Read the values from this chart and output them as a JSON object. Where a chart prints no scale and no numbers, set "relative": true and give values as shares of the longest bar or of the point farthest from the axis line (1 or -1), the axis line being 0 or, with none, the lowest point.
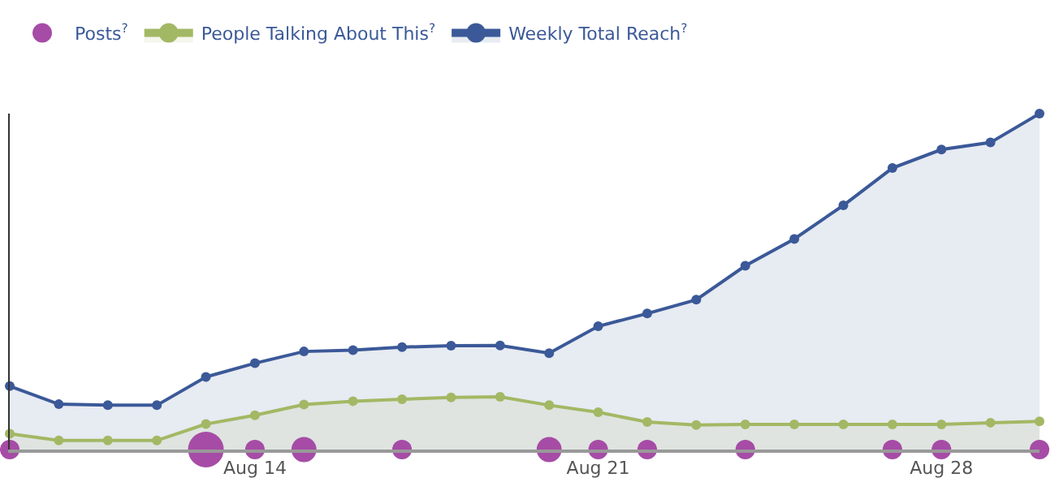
{
  "chart_data": {
    "type": "area",
    "relative": true,
    "legend": "top left",
    "marker": "circle",
    "line_style": "solid",
    "tick_labels": "x",
    "x": [
      "--08-09",
      "--08-10",
      "--08-11",
      "--08-12",
      "--08-13",
      "--08-14",
      "--08-15",
      "--08-16",
      "--08-17",
      "--08-18",
      "--08-19",
      "--08-20",
      "--08-21",
      "--08-22",
      "--08-23",
      "--08-24",
      "--08-25",
      "--08-26",
      "--08-27",
      "--08-28",
      "--08-29",
      "--08-30"
    ],
    "xlim": [
      "--08-09",
      "--08-30"
    ],
    "xticks": [
      {
        "value": "--08-14",
        "label": "Aug 14"
      },
      {
        "value": "--08-21",
        "label": "Aug 21"
      },
      {
        "value": "--08-28",
        "label": "Aug 28"
      }
    ],
    "series": [
      {
        "name": "Posts$^{?}$",
        "type": "bubble",
        "color": "#a64ca6",
        "x": [
          "--08-09",
          "--08-13",
          "--08-14",
          "--08-15",
          "--08-17",
          "--08-20",
          "--08-21",
          "--08-22",
          "--08-24",
          "--08-27",
          "--08-28",
          "--08-30"
        ],
        "values": [
          0,
          0,
          0,
          0,
          0,
          0,
          0,
          0,
          0,
          0,
          0,
          0
        ],
        "sizes": [
          0.3,
          1,
          0.3,
          0.49,
          0.3,
          0.49,
          0.3,
          0.3,
          0.3,
          0.3,
          0.3,
          0.3
        ]
      },
      {
        "name": "People Talking About This$^{?}$",
        "color": "#a3b864",
        "values": [
          0.047,
          0.027,
          0.027,
          0.027,
          0.076,
          0.102,
          0.134,
          0.144,
          0.15,
          0.155,
          0.157,
          0.132,
          0.111,
          0.082,
          0.073,
          0.075,
          0.075,
          0.075,
          0.075,
          0.075,
          0.08,
          0.084
        ]
      },
      {
        "name": "Weekly Total Reach$^{?}$",
        "color": "#3b5998",
        "values": [
          0.189,
          0.135,
          0.132,
          0.132,
          0.216,
          0.257,
          0.292,
          0.296,
          0.305,
          0.309,
          0.31,
          0.287,
          0.367,
          0.405,
          0.446,
          0.547,
          0.627,
          0.727,
          0.838,
          0.893,
          0.914,
          1
        ]
      }
    ]
  }
}
